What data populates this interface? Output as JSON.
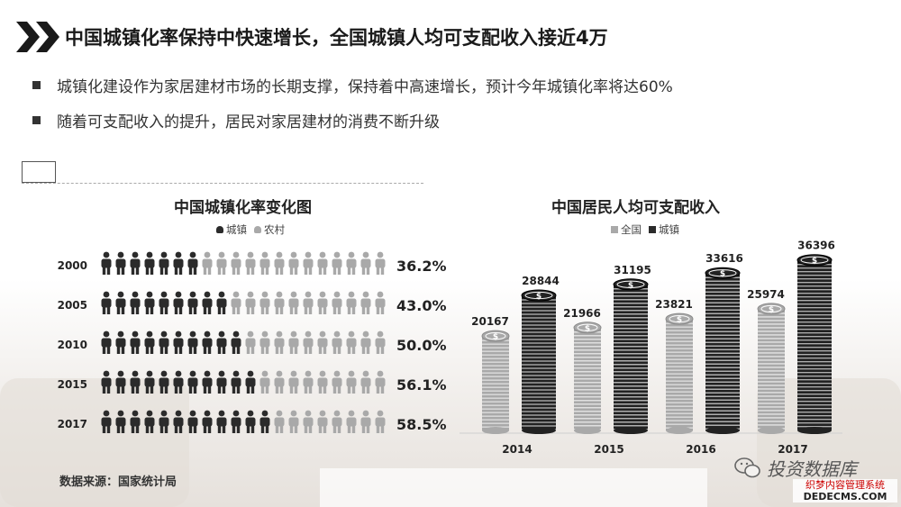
{
  "title": "中国城镇化率保持中快速增长，全国城镇人均可支配收入接近4万",
  "bullets": [
    "城镇化建设作为家居建材市场的长期支撑，保持着中高速增长，预计今年城镇化率将达60%",
    "随着可支配收入的提升，居民对家居建材的消费不断升级"
  ],
  "colors": {
    "urban": "#2b2b2b",
    "rural": "#a9a9a9",
    "accent": "#111111"
  },
  "icons": {
    "header": "double-chevron-icon",
    "person": "person-icon",
    "coin": "dollar-coin-icon",
    "brand": "wechat-icon"
  },
  "source": "数据来源：国家统计局",
  "brand": "投资数据库",
  "watermark": {
    "line1": "织梦内容管理系统",
    "line2": "DEDECMS.COM"
  },
  "chart_data": [
    {
      "type": "bar",
      "title": "中国城镇化率变化图",
      "legend": [
        "城镇",
        "农村"
      ],
      "categories": [
        "2000",
        "2005",
        "2010",
        "2015",
        "2017"
      ],
      "values": [
        36.2,
        43.0,
        50.0,
        56.1,
        58.5
      ],
      "labels": [
        "36.2%",
        "43.0%",
        "50.0%",
        "56.1%",
        "58.5%"
      ],
      "unit": "%",
      "ylim": [
        0,
        100
      ]
    },
    {
      "type": "bar",
      "title": "中国居民人均可支配收入",
      "legend": [
        "全国",
        "城镇"
      ],
      "categories": [
        "2014",
        "2015",
        "2016",
        "2017"
      ],
      "series": [
        {
          "name": "全国",
          "values": [
            20167,
            21966,
            23821,
            25974
          ]
        },
        {
          "name": "城镇",
          "values": [
            28844,
            31195,
            33616,
            36396
          ]
        }
      ],
      "ylim": [
        0,
        40000
      ]
    }
  ]
}
